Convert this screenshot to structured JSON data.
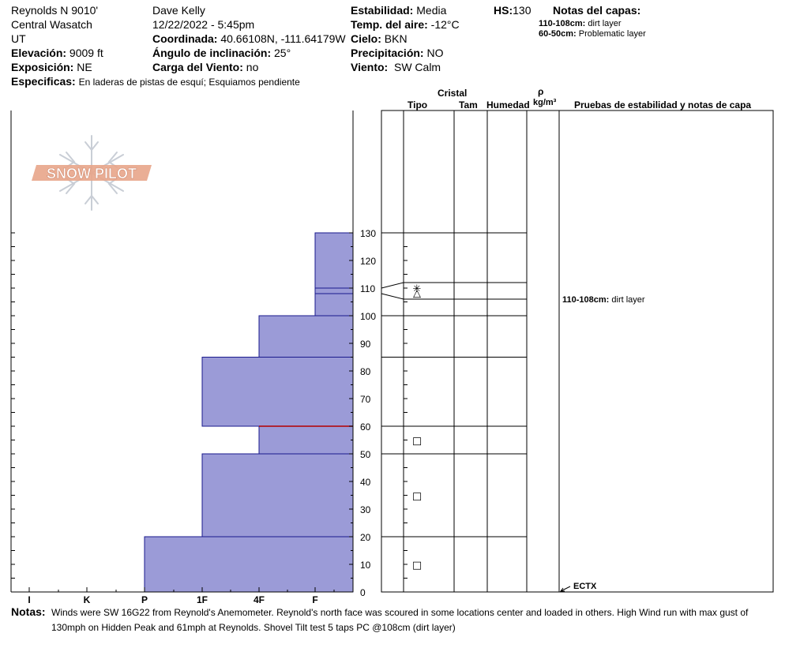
{
  "header": {
    "location": "Reynolds N 9010'",
    "range": "Central Wasatch",
    "state": "UT",
    "elevation_label": "Elevación:",
    "elevation_value": "9009 ft",
    "aspect_label": "Exposición:",
    "aspect_value": "NE",
    "specifics_label": "Especificas:",
    "specifics_value": "En laderas de pistas de esquí; Esquiamos pendiente",
    "observer": "Dave Kelly",
    "datetime": "12/22/2022 - 5:45pm",
    "coord_label": "Coordinada:",
    "coord_value": "40.66108N, -111.64179W",
    "slope_label": "Ángulo de inclinación:",
    "slope_value": "25°",
    "windload_label": "Carga del Viento:",
    "windload_value": "no",
    "stability_label": "Estabilidad:",
    "stability_value": "Media",
    "airtemp_label": "Temp. del aire:",
    "airtemp_value": "-12°C",
    "sky_label": "Cielo:",
    "sky_value": "BKN",
    "precip_label": "Precipitación:",
    "precip_value": "NO",
    "wind_label": "Viento:",
    "wind_value": "SW Calm",
    "hs_label": "HS:",
    "hs_value": "130",
    "layer_notes_title": "Notas del capas:",
    "layer_notes": [
      {
        "range": "110-108cm:",
        "text": "dirt layer"
      },
      {
        "range": "60-50cm:",
        "text": "Problematic layer"
      }
    ]
  },
  "columns": {
    "crystal": "Cristal",
    "type": "Tipo",
    "size": "Tam",
    "moisture": "Humedad",
    "rho": "ρ",
    "density_unit": "kg/m³",
    "tests": "Pruebas de estabilidad y notas de capa"
  },
  "logo_text": "SNOW PILOT",
  "chart_data": {
    "type": "bar",
    "title": "",
    "ylim": [
      0,
      130
    ],
    "y_ticks": [
      0,
      10,
      20,
      30,
      40,
      50,
      60,
      70,
      80,
      90,
      100,
      110,
      120,
      130
    ],
    "hardness_scale": [
      "I",
      "K",
      "P",
      "1F",
      "4F",
      "F"
    ],
    "layers": [
      {
        "bottom": 0,
        "top": 20,
        "hardness": "P"
      },
      {
        "bottom": 20,
        "top": 50,
        "hardness": "1F"
      },
      {
        "bottom": 50,
        "top": 60,
        "hardness": "4F"
      },
      {
        "bottom": 60,
        "top": 85,
        "hardness": "1F"
      },
      {
        "bottom": 85,
        "top": 100,
        "hardness": "4F"
      },
      {
        "bottom": 100,
        "top": 108,
        "hardness": "F"
      },
      {
        "bottom": 108,
        "top": 110,
        "hardness": "F"
      },
      {
        "bottom": 110,
        "top": 130,
        "hardness": "F"
      }
    ],
    "grain_symbols": [
      {
        "height": 110,
        "symbol": "✳"
      },
      {
        "height": 108.5,
        "symbol": "△"
      },
      {
        "height": 55,
        "symbol": "□"
      },
      {
        "height": 35,
        "symbol": "□"
      },
      {
        "height": 10,
        "symbol": "□"
      }
    ],
    "layer_annotations": [
      {
        "height": 108,
        "range": "110-108cm:",
        "text": "dirt layer"
      }
    ],
    "test_results": [
      {
        "height": 0,
        "text": "ECTX"
      }
    ],
    "highlight_boundary": 60
  },
  "notes": {
    "label": "Notas:",
    "text": "Winds were SW 16G22 from Reynold's Anemometer. Reynold's north face was scoured in some locations center and loaded in others. High Wind run with max gust of 130mph  on Hidden Peak and 61mph at Reynolds.  Shovel Tilt test 5 taps PC @108cm (dirt layer)"
  },
  "colors": {
    "layer_fill": "#9b9bd7",
    "layer_stroke": "#1a1a8c",
    "highlight": "#b40000",
    "logo": "#e8a58a"
  }
}
